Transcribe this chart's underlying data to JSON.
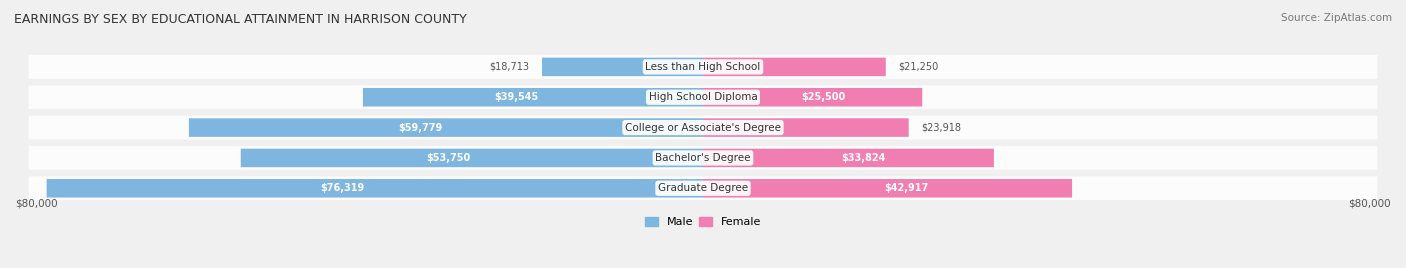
{
  "title": "EARNINGS BY SEX BY EDUCATIONAL ATTAINMENT IN HARRISON COUNTY",
  "source": "Source: ZipAtlas.com",
  "categories": [
    "Less than High School",
    "High School Diploma",
    "College or Associate's Degree",
    "Bachelor's Degree",
    "Graduate Degree"
  ],
  "male_values": [
    18713,
    39545,
    59779,
    53750,
    76319
  ],
  "female_values": [
    21250,
    25500,
    23918,
    33824,
    42917
  ],
  "max_value": 80000,
  "male_color": "#7EB6E0",
  "female_color": "#F07EB0",
  "male_label": "Male",
  "female_label": "Female",
  "x_tick_label_left": "$80,000",
  "x_tick_label_right": "$80,000",
  "bg_color": "#f0f0f0",
  "bar_bg_color": "#e8e8e8",
  "row_bg_color": "#f8f8f8"
}
